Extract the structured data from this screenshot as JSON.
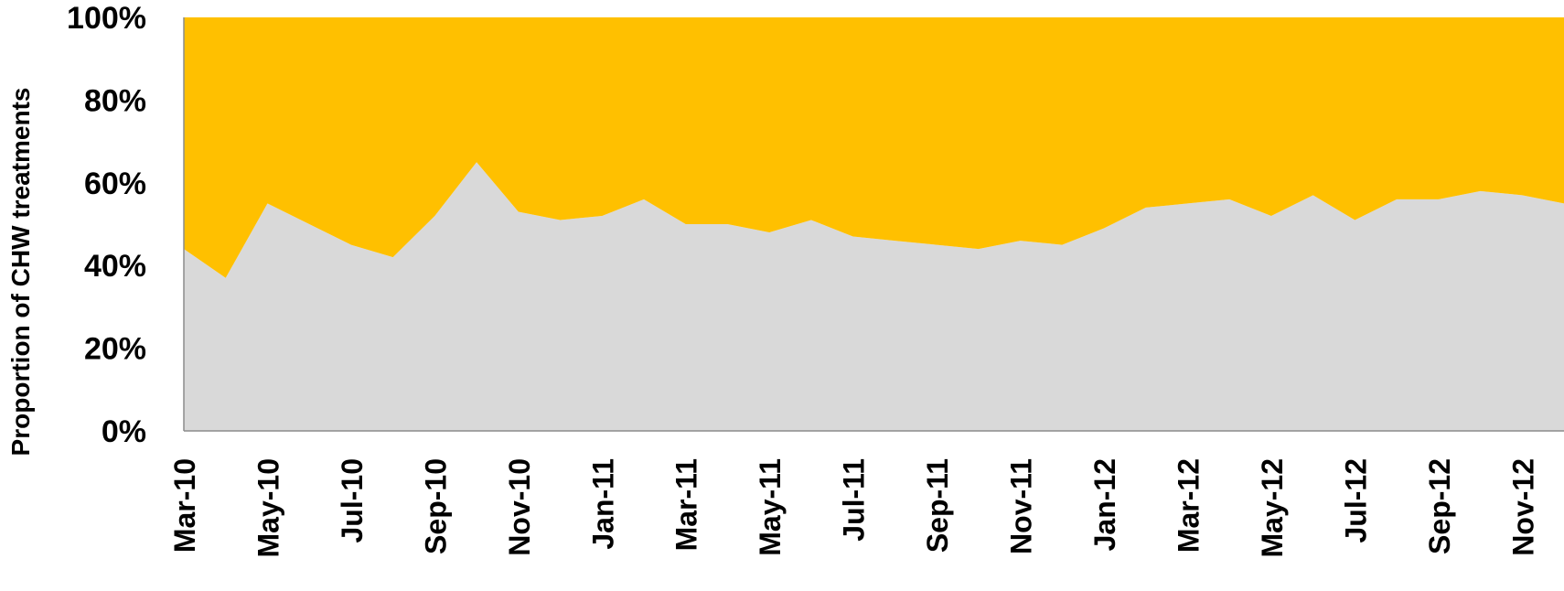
{
  "chart_data": {
    "type": "area",
    "stacked": true,
    "percent": true,
    "title": "",
    "xlabel": "",
    "ylabel": "Proportion of CHW treatments",
    "ylim": [
      0,
      100
    ],
    "yticks": [
      "0%",
      "20%",
      "40%",
      "60%",
      "80%",
      "100%"
    ],
    "x": [
      "Mar-10",
      "Apr-10",
      "May-10",
      "Jun-10",
      "Jul-10",
      "Aug-10",
      "Sep-10",
      "Oct-10",
      "Nov-10",
      "Dec-10",
      "Jan-11",
      "Feb-11",
      "Mar-11",
      "Apr-11",
      "May-11",
      "Jun-11",
      "Jul-11",
      "Aug-11",
      "Sep-11",
      "Oct-11",
      "Nov-11",
      "Dec-11",
      "Jan-12",
      "Feb-12",
      "Mar-12",
      "Apr-12",
      "May-12",
      "Jun-12",
      "Jul-12",
      "Aug-12",
      "Sep-12",
      "Oct-12",
      "Nov-12",
      "Dec-12"
    ],
    "xtick_labels": [
      "Mar-10",
      "May-10",
      "Jul-10",
      "Sep-10",
      "Nov-10",
      "Jan-11",
      "Mar-11",
      "May-11",
      "Jul-11",
      "Sep-11",
      "Nov-11",
      "Jan-12",
      "Mar-12",
      "May-12",
      "Jul-12",
      "Sep-12",
      "Nov-12"
    ],
    "series": [
      {
        "color": "#d9d9d9",
        "values": [
          44,
          37,
          55,
          50,
          45,
          42,
          52,
          65,
          53,
          51,
          52,
          56,
          50,
          50,
          48,
          51,
          47,
          46,
          45,
          44,
          46,
          45,
          49,
          54,
          55,
          56,
          52,
          57,
          51,
          56,
          56,
          58,
          57,
          55
        ]
      },
      {
        "color": "#ffc000",
        "values": [
          56,
          63,
          45,
          50,
          55,
          58,
          48,
          35,
          47,
          49,
          48,
          44,
          50,
          50,
          52,
          49,
          53,
          54,
          55,
          56,
          54,
          55,
          51,
          46,
          45,
          44,
          48,
          43,
          49,
          44,
          44,
          42,
          43,
          45
        ]
      }
    ],
    "grid": false,
    "legend": "none"
  }
}
